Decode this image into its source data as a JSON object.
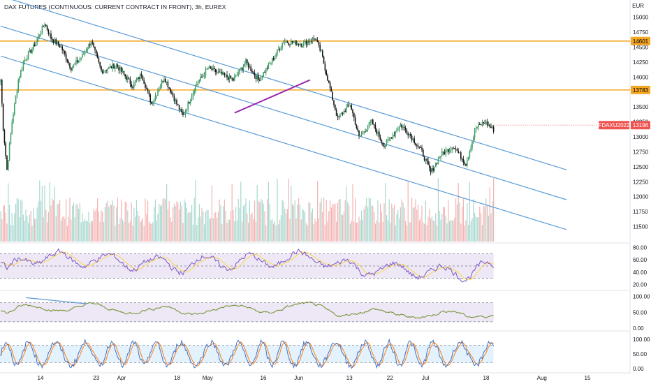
{
  "header": {
    "title": "DAX FUTURES (CONTINUOUS: CURRENT CONTRACT IN FRONT), 3h, EUREX",
    "currency": "EUR"
  },
  "colors": {
    "up": "#26a69a",
    "down": "#ef5350",
    "channel": "#5b9bd5",
    "level": "#f5a623",
    "trend": "#9c27b0",
    "rsi": "#7e57c2",
    "signal": "#f9d84a",
    "osc2": "#6b8e23",
    "stoch_k": "#4472c4",
    "stoch_d": "#ff7f0e"
  },
  "chart_data": [
    {
      "type": "candlestick",
      "name": "price",
      "ylim": [
        11250,
        15100
      ],
      "y_ticks": [
        "15000",
        "14750",
        "14500",
        "14250",
        "14000",
        "13750",
        "13500",
        "13250",
        "13000",
        "12750",
        "12500",
        "12250",
        "12000",
        "11750",
        "11500"
      ],
      "x_ticks": [
        "14",
        "23",
        "Apr",
        "18",
        "May",
        "16",
        "Jun",
        "13",
        "22",
        "Jul",
        "18",
        "Aug",
        "15"
      ],
      "x_tick_pos": [
        0,
        1.1,
        1.6,
        2.7,
        3.3,
        4.4,
        5.1,
        6.1,
        6.9,
        7.6,
        8.8,
        9.9,
        10.8
      ],
      "labels": {
        "level_high": "14601",
        "level_low": "13783",
        "current_symbol": "FDAXU2022",
        "current_price": "13196"
      },
      "levels": [
        14601,
        13783
      ],
      "current": 13196,
      "anchors": [
        [
          0,
          13950
        ],
        [
          2,
          13150
        ],
        [
          5,
          12450
        ],
        [
          9,
          13250
        ],
        [
          14,
          13950
        ],
        [
          18,
          14250
        ],
        [
          26,
          14500
        ],
        [
          35,
          14900
        ],
        [
          40,
          14650
        ],
        [
          48,
          14500
        ],
        [
          56,
          14150
        ],
        [
          65,
          14350
        ],
        [
          72,
          14600
        ],
        [
          80,
          14100
        ],
        [
          92,
          14200
        ],
        [
          105,
          13850
        ],
        [
          112,
          14050
        ],
        [
          120,
          13550
        ],
        [
          130,
          14000
        ],
        [
          140,
          13550
        ],
        [
          145,
          13350
        ],
        [
          155,
          13850
        ],
        [
          165,
          14150
        ],
        [
          175,
          14050
        ],
        [
          185,
          13950
        ],
        [
          195,
          14250
        ],
        [
          205,
          13950
        ],
        [
          215,
          14250
        ],
        [
          225,
          14600
        ],
        [
          240,
          14550
        ],
        [
          250,
          14650
        ],
        [
          255,
          14400
        ],
        [
          262,
          13800
        ],
        [
          268,
          13300
        ],
        [
          278,
          13550
        ],
        [
          285,
          13000
        ],
        [
          295,
          13250
        ],
        [
          305,
          12850
        ],
        [
          318,
          13200
        ],
        [
          325,
          13050
        ],
        [
          335,
          12750
        ],
        [
          342,
          12400
        ],
        [
          350,
          12700
        ],
        [
          360,
          12850
        ],
        [
          370,
          12550
        ],
        [
          378,
          13150
        ],
        [
          385,
          13250
        ],
        [
          393,
          13100
        ]
      ],
      "n_candles": 393,
      "volume_ylim": [
        0,
        100
      ],
      "channels": [
        [
          [
            0,
            15350
          ],
          [
            450,
            12450
          ]
        ],
        [
          [
            0,
            14350
          ],
          [
            450,
            11450
          ]
        ],
        [
          [
            0,
            14850
          ],
          [
            450,
            11950
          ]
        ]
      ],
      "trend_support": [
        [
          186,
          13400
        ],
        [
          246,
          13950
        ]
      ]
    },
    {
      "type": "line",
      "name": "rsi",
      "ylim": [
        15,
        85
      ],
      "y_ticks": [
        "80.00",
        "60.00",
        "40.00",
        "20.00"
      ],
      "bands": [
        70,
        50,
        30
      ]
    },
    {
      "type": "line",
      "name": "osc2",
      "ylim": [
        0,
        110
      ],
      "y_ticks": [
        "100.00",
        "50.00",
        "0.00"
      ],
      "bands": [
        80,
        20
      ]
    },
    {
      "type": "line",
      "name": "stoch",
      "ylim": [
        -5,
        105
      ],
      "y_ticks": [
        "100.00",
        "50.00",
        "0.00"
      ],
      "bands": [
        80,
        20
      ]
    }
  ]
}
